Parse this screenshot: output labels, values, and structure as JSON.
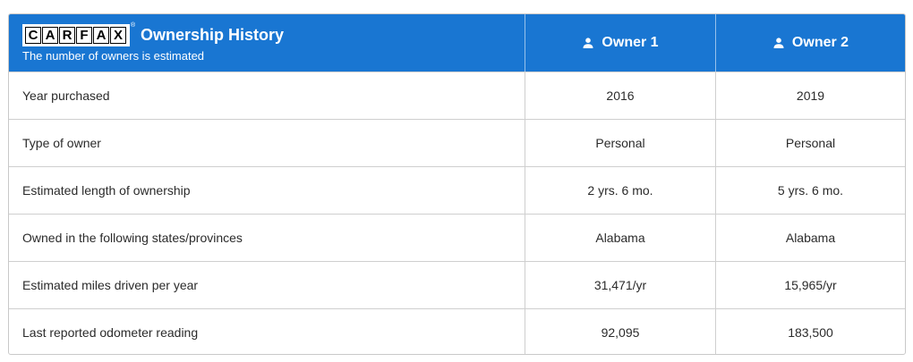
{
  "header": {
    "logo_letters": [
      "C",
      "A",
      "R",
      "F",
      "A",
      "X"
    ],
    "logo_tm": "®",
    "title": "Ownership History",
    "subtitle": "The number of owners is estimated",
    "owners": [
      {
        "label": "Owner 1",
        "icon": "user-icon"
      },
      {
        "label": "Owner 2",
        "icon": "user-icon"
      }
    ]
  },
  "rows": [
    {
      "label": "Year purchased",
      "owner1": "2016",
      "owner2": "2019"
    },
    {
      "label": "Type of owner",
      "owner1": "Personal",
      "owner2": "Personal"
    },
    {
      "label": "Estimated length of ownership",
      "owner1": "2 yrs. 6 mo.",
      "owner2": "5 yrs. 6 mo."
    },
    {
      "label": "Owned in the following states/provinces",
      "owner1": "Alabama",
      "owner2": "Alabama"
    },
    {
      "label": "Estimated miles driven per year",
      "owner1": "31,471/yr",
      "owner2": "15,965/yr"
    },
    {
      "label": "Last reported odometer reading",
      "owner1": "92,095",
      "owner2": "183,500"
    }
  ],
  "colors": {
    "header_bg": "#1976d2",
    "border": "#cfcfcf"
  }
}
